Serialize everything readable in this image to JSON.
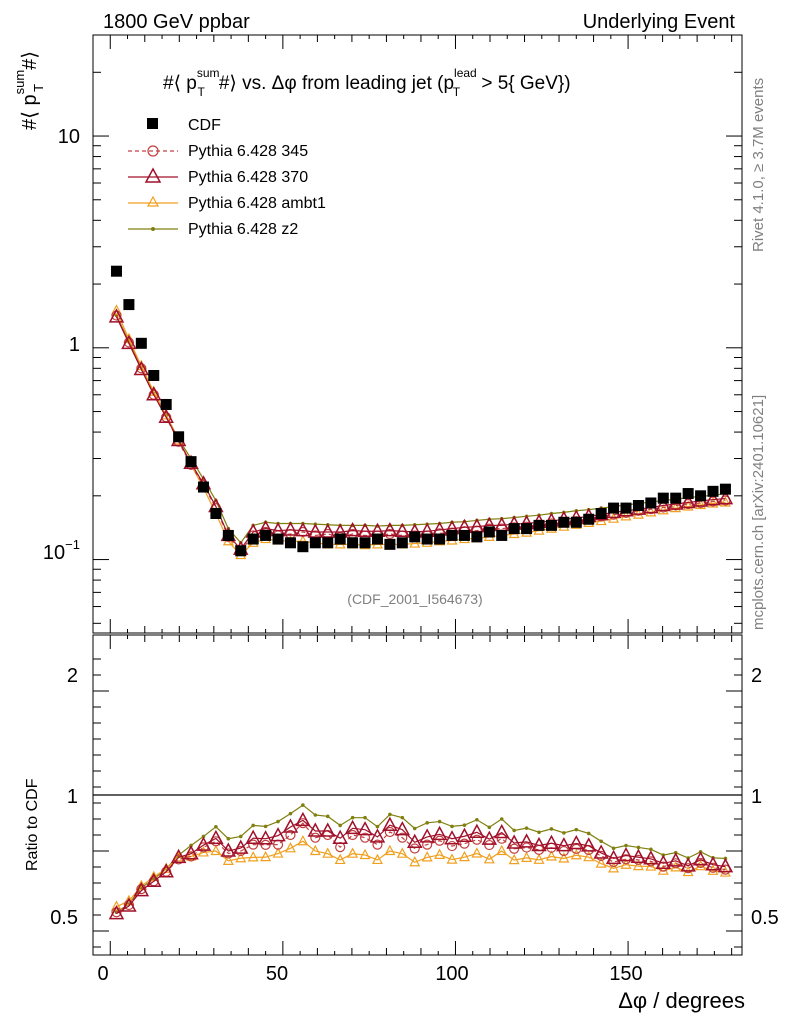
{
  "header": {
    "left": "1800 GeV ppbar",
    "right": "Underlying Event"
  },
  "side": {
    "rivet": "Rivet 4.1.0, ≥ 3.7M events",
    "site": "mcplots.cern.ch [arXiv:2401.10621]"
  },
  "chart_data": {
    "type": "line",
    "title": "#⟨ p_T^sum #⟩ vs. Δφ from leading jet  (p_T^lead > 5{ GeV})",
    "title_parts": {
      "a": "#⟨ p",
      "sup": "sum",
      "sub": "T",
      "b": "#⟩ vs. Δφ from leading jet  (p",
      "sup2": "lead",
      "sub2": "T",
      "c": " > 5{ GeV})"
    },
    "analysis_label": "(CDF_2001_I564673)",
    "ylabel": {
      "a": "#⟨ p",
      "sup": "sum",
      "sub": "T",
      "b": "#⟩"
    },
    "xlabel": "Δφ / degrees",
    "ratio_ylabel": "Ratio to CDF",
    "xlim": [
      -5,
      183
    ],
    "ylim": [
      0.045,
      30
    ],
    "yscale": "log",
    "ratio_ylim": [
      0.35,
      2.35
    ],
    "x_ticks": [
      "0",
      "50",
      "100",
      "150"
    ],
    "y_ticks": [
      "10",
      "1",
      "10^-1"
    ],
    "ratio_ticks": [
      "2",
      "1",
      "0.5"
    ],
    "x": [
      1.8,
      5.4,
      9.0,
      12.6,
      16.2,
      19.8,
      23.4,
      27.0,
      30.6,
      34.2,
      37.8,
      41.4,
      45.0,
      48.6,
      52.2,
      55.8,
      59.4,
      63.0,
      66.6,
      70.2,
      73.8,
      77.4,
      81.0,
      84.6,
      88.2,
      91.8,
      95.4,
      99.0,
      102.6,
      106.2,
      109.8,
      113.4,
      117.0,
      120.6,
      124.2,
      127.8,
      131.4,
      135.0,
      138.6,
      142.2,
      145.8,
      149.4,
      153.0,
      156.6,
      160.2,
      163.8,
      167.4,
      171.0,
      174.6,
      178.2
    ],
    "series": [
      {
        "name": "CDF",
        "color": "#000000",
        "style": "square",
        "values": [
          2.3,
          1.6,
          1.05,
          0.74,
          0.54,
          0.38,
          0.29,
          0.22,
          0.165,
          0.13,
          0.11,
          0.125,
          0.13,
          0.125,
          0.12,
          0.115,
          0.12,
          0.12,
          0.125,
          0.12,
          0.12,
          0.125,
          0.118,
          0.12,
          0.128,
          0.125,
          0.125,
          0.13,
          0.13,
          0.128,
          0.135,
          0.13,
          0.14,
          0.14,
          0.145,
          0.145,
          0.15,
          0.15,
          0.155,
          0.165,
          0.175,
          0.175,
          0.18,
          0.185,
          0.195,
          0.195,
          0.205,
          0.2,
          0.21,
          0.215
        ]
      },
      {
        "name": "Pythia 6.428 345",
        "color": "#c04040",
        "style": "circle-dashed",
        "values": [
          1.42,
          1.06,
          0.8,
          0.6,
          0.47,
          0.36,
          0.28,
          0.225,
          0.175,
          0.128,
          0.11,
          0.13,
          0.135,
          0.13,
          0.132,
          0.135,
          0.13,
          0.132,
          0.128,
          0.132,
          0.13,
          0.13,
          0.132,
          0.13,
          0.13,
          0.13,
          0.133,
          0.134,
          0.136,
          0.137,
          0.14,
          0.14,
          0.142,
          0.143,
          0.146,
          0.148,
          0.15,
          0.152,
          0.156,
          0.16,
          0.163,
          0.166,
          0.17,
          0.173,
          0.176,
          0.18,
          0.183,
          0.185,
          0.188,
          0.19
        ]
      },
      {
        "name": "Pythia 6.428 370",
        "color": "#a0102a",
        "style": "triangle-large",
        "values": [
          1.4,
          1.05,
          0.79,
          0.6,
          0.47,
          0.365,
          0.285,
          0.228,
          0.178,
          0.13,
          0.112,
          0.135,
          0.14,
          0.137,
          0.138,
          0.137,
          0.135,
          0.135,
          0.135,
          0.137,
          0.136,
          0.136,
          0.137,
          0.136,
          0.135,
          0.136,
          0.138,
          0.14,
          0.142,
          0.143,
          0.145,
          0.145,
          0.147,
          0.148,
          0.15,
          0.152,
          0.155,
          0.157,
          0.16,
          0.163,
          0.167,
          0.17,
          0.173,
          0.176,
          0.18,
          0.183,
          0.186,
          0.189,
          0.192,
          0.194
        ]
      },
      {
        "name": "Pythia 6.428 ambt1",
        "color": "#f0a020",
        "style": "triangle-small",
        "values": [
          1.5,
          1.1,
          0.82,
          0.62,
          0.48,
          0.365,
          0.28,
          0.218,
          0.165,
          0.122,
          0.105,
          0.12,
          0.125,
          0.123,
          0.122,
          0.122,
          0.12,
          0.118,
          0.118,
          0.118,
          0.117,
          0.118,
          0.118,
          0.118,
          0.119,
          0.12,
          0.122,
          0.123,
          0.125,
          0.126,
          0.128,
          0.13,
          0.132,
          0.134,
          0.137,
          0.14,
          0.143,
          0.146,
          0.149,
          0.152,
          0.156,
          0.16,
          0.163,
          0.167,
          0.171,
          0.175,
          0.178,
          0.181,
          0.184,
          0.186
        ]
      },
      {
        "name": "Pythia 6.428 z2",
        "color": "#808010",
        "style": "dot",
        "values": [
          1.42,
          1.07,
          0.81,
          0.61,
          0.48,
          0.37,
          0.3,
          0.24,
          0.19,
          0.14,
          0.12,
          0.145,
          0.15,
          0.148,
          0.148,
          0.148,
          0.147,
          0.146,
          0.145,
          0.145,
          0.145,
          0.144,
          0.145,
          0.145,
          0.146,
          0.147,
          0.148,
          0.15,
          0.151,
          0.153,
          0.155,
          0.156,
          0.158,
          0.16,
          0.162,
          0.165,
          0.167,
          0.17,
          0.172,
          0.175,
          0.178,
          0.181,
          0.184,
          0.187,
          0.19,
          0.193,
          0.196,
          0.199,
          0.201,
          0.205
        ]
      }
    ]
  }
}
